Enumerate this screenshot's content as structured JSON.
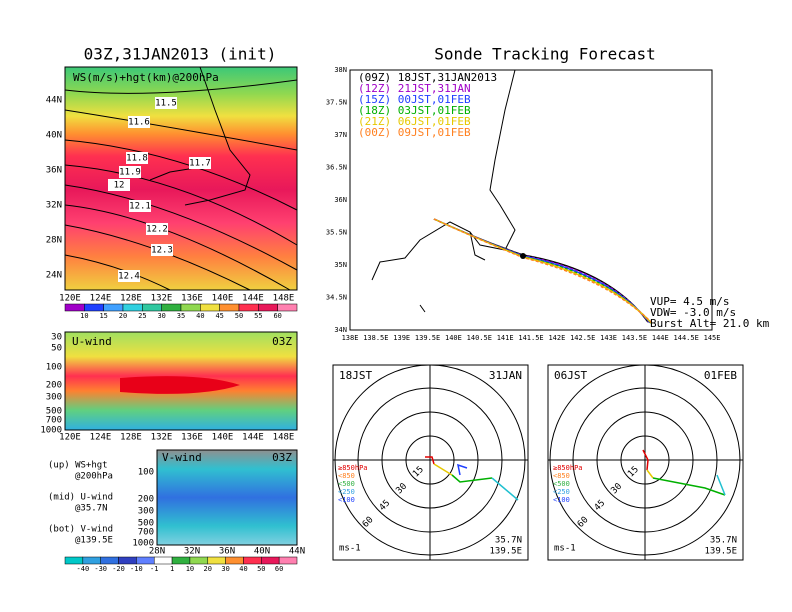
{
  "left_top": {
    "title": "03Z,31JAN2013 (init)",
    "label": "WS(m/s)+hgt(km)@200hPa",
    "lat_labels": [
      "44N",
      "40N",
      "36N",
      "32N",
      "28N",
      "24N"
    ],
    "lon_labels": [
      "120E",
      "124E",
      "128E",
      "132E",
      "136E",
      "140E",
      "144E",
      "148E"
    ],
    "contour_labels": [
      "11.5",
      "11.6",
      "11.8",
      "11.7",
      "11.9",
      "12",
      "12.1",
      "12.2",
      "12.3",
      "12.4"
    ],
    "colorbar": [
      "10",
      "15",
      "20",
      "25",
      "30",
      "35",
      "40",
      "45",
      "50",
      "55",
      "60"
    ]
  },
  "u_wind": {
    "label": "U-wind",
    "time": "03Z",
    "levels": [
      "30",
      "50",
      "100",
      "200",
      "300",
      "500",
      "700",
      "1000"
    ],
    "lon_labels": [
      "120E",
      "124E",
      "128E",
      "132E",
      "136E",
      "140E",
      "144E",
      "148E"
    ]
  },
  "v_wind": {
    "label": "V-wind",
    "time": "03Z",
    "levels": [
      "100",
      "200",
      "300",
      "500",
      "700",
      "1000"
    ],
    "lat_labels": [
      "28N",
      "32N",
      "36N",
      "40N",
      "44N"
    ]
  },
  "notes": [
    [
      "(up) WS+hgt",
      "@200hPa"
    ],
    [
      "(mid) U-wind",
      "@35.7N"
    ],
    [
      "(bot) V-wind",
      "@139.5E"
    ]
  ],
  "colorbar2": [
    "-40",
    "-30",
    "-20",
    "-10",
    "-1",
    "1",
    "10",
    "20",
    "30",
    "40",
    "50",
    "60"
  ],
  "track": {
    "title": "Sonde Tracking Forecast",
    "lat_labels": [
      "38N",
      "37.5N",
      "37N",
      "36.5N",
      "36N",
      "35.5N",
      "35N",
      "34.5N",
      "34N"
    ],
    "lon_labels": [
      "138E",
      "138.5E",
      "139E",
      "139.5E",
      "140E",
      "140.5E",
      "141E",
      "141.5E",
      "142E",
      "142.5E",
      "143E",
      "143.5E",
      "144E",
      "144.5E",
      "145E"
    ],
    "legend": [
      {
        "label": "(09Z) 18JST,31JAN2013",
        "color": "#000000"
      },
      {
        "label": "(12Z) 21JST,31JAN",
        "color": "#a000c8"
      },
      {
        "label": "(15Z) 00JST,01FEB",
        "color": "#2040ff"
      },
      {
        "label": "(18Z) 03JST,01FEB",
        "color": "#00b000"
      },
      {
        "label": "(21Z) 06JST,01FEB",
        "color": "#e6c800"
      },
      {
        "label": "(00Z) 09JST,01FEB",
        "color": "#ff8020"
      }
    ],
    "stats": [
      "VUP= 4.5 m/s",
      "VDW= -3.0 m/s",
      "Burst Alt= 21.0 km"
    ]
  },
  "hodographs": [
    {
      "time": "18JST",
      "date": "31JAN",
      "levels": [
        "≥850hPa",
        "<850",
        "<500",
        "<250",
        "<100"
      ],
      "rings": [
        "15",
        "30",
        "45",
        "60"
      ],
      "unit": "ms-1",
      "lat": "35.7N",
      "lon": "139.5E"
    },
    {
      "time": "06JST",
      "date": "01FEB",
      "levels": [
        "≥850hPa",
        "<850",
        "<500",
        "<250",
        "<100"
      ],
      "rings": [
        "15",
        "30",
        "45",
        "60"
      ],
      "unit": "ms-1",
      "lat": "35.7N",
      "lon": "139.5E"
    }
  ]
}
